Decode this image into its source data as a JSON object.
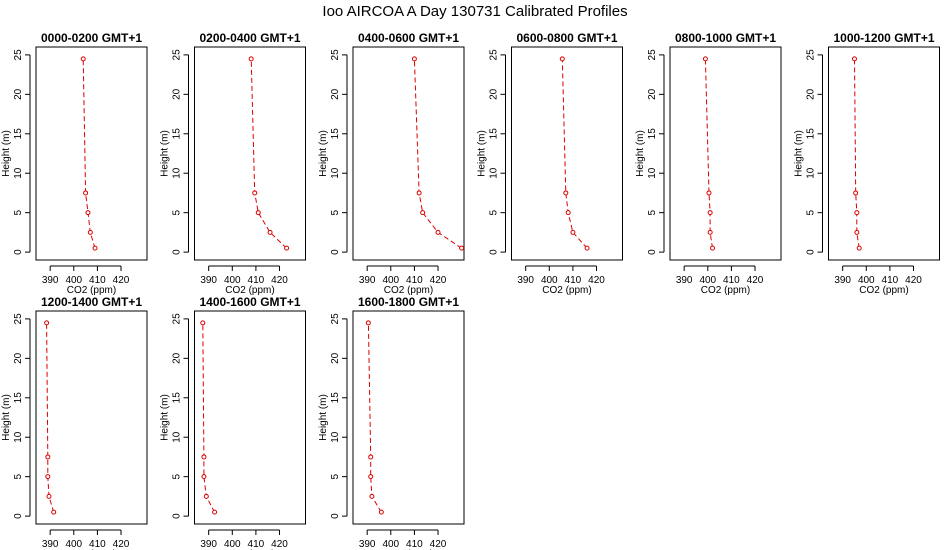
{
  "figure": {
    "title": "Ioo AIRCOA A  Day 130731  Calibrated Profiles"
  },
  "chart_data": [
    {
      "type": "line",
      "title": "0000-0200 GMT+1",
      "xlabel": "CO2 (ppm)",
      "ylabel": "Height (m)",
      "x_ticks": [
        390,
        400,
        410,
        420
      ],
      "y_ticks": [
        0,
        5,
        10,
        15,
        20,
        25
      ],
      "xlim": [
        384,
        431
      ],
      "ylim": [
        -1,
        26
      ],
      "series": [
        {
          "x": [
            409,
            407,
            406,
            405,
            404
          ],
          "y": [
            0.5,
            2.5,
            5,
            7.5,
            24.5
          ]
        }
      ]
    },
    {
      "type": "line",
      "title": "0200-0400 GMT+1",
      "xlabel": "CO2 (ppm)",
      "ylabel": "Height (m)",
      "x_ticks": [
        390,
        400,
        410,
        420
      ],
      "y_ticks": [
        0,
        5,
        10,
        15,
        20,
        25
      ],
      "xlim": [
        384,
        431
      ],
      "ylim": [
        -1,
        26
      ],
      "series": [
        {
          "x": [
            423,
            416,
            411,
            409.5,
            408
          ],
          "y": [
            0.5,
            2.5,
            5,
            7.5,
            24.5
          ]
        }
      ]
    },
    {
      "type": "line",
      "title": "0400-0600 GMT+1",
      "xlabel": "CO2 (ppm)",
      "ylabel": "Height (m)",
      "x_ticks": [
        390,
        400,
        410,
        420
      ],
      "y_ticks": [
        0,
        5,
        10,
        15,
        20,
        25
      ],
      "xlim": [
        384,
        431
      ],
      "ylim": [
        -1,
        26
      ],
      "series": [
        {
          "x": [
            430,
            420,
            413.5,
            412,
            410
          ],
          "y": [
            0.5,
            2.5,
            5,
            7.5,
            24.5
          ]
        }
      ]
    },
    {
      "type": "line",
      "title": "0600-0800 GMT+1",
      "xlabel": "CO2 (ppm)",
      "ylabel": "Height (m)",
      "x_ticks": [
        390,
        400,
        410,
        420
      ],
      "y_ticks": [
        0,
        5,
        10,
        15,
        20,
        25
      ],
      "xlim": [
        384,
        431
      ],
      "ylim": [
        -1,
        26
      ],
      "series": [
        {
          "x": [
            416,
            410,
            408,
            407,
            405.5
          ],
          "y": [
            0.5,
            2.5,
            5,
            7.5,
            24.5
          ]
        }
      ]
    },
    {
      "type": "line",
      "title": "0800-1000 GMT+1",
      "xlabel": "CO2 (ppm)",
      "ylabel": "Height (m)",
      "x_ticks": [
        390,
        400,
        410,
        420
      ],
      "y_ticks": [
        0,
        5,
        10,
        15,
        20,
        25
      ],
      "xlim": [
        384,
        431
      ],
      "ylim": [
        -1,
        26
      ],
      "series": [
        {
          "x": [
            402,
            401,
            401,
            400.5,
            399
          ],
          "y": [
            0.5,
            2.5,
            5,
            7.5,
            24.5
          ]
        }
      ]
    },
    {
      "type": "line",
      "title": "1000-1200 GMT+1",
      "xlabel": "CO2 (ppm)",
      "ylabel": "Height (m)",
      "x_ticks": [
        390,
        400,
        410,
        420
      ],
      "y_ticks": [
        0,
        5,
        10,
        15,
        20,
        25
      ],
      "xlim": [
        384,
        431
      ],
      "ylim": [
        -1,
        26
      ],
      "series": [
        {
          "x": [
            397,
            396,
            396,
            395.5,
            395
          ],
          "y": [
            0.5,
            2.5,
            5,
            7.5,
            24.5
          ]
        }
      ]
    },
    {
      "type": "line",
      "title": "1200-1400 GMT+1",
      "xlabel": "CO2 (ppm)",
      "ylabel": "Height (m)",
      "x_ticks": [
        390,
        400,
        410,
        420
      ],
      "y_ticks": [
        0,
        5,
        10,
        15,
        20,
        25
      ],
      "xlim": [
        384,
        431
      ],
      "ylim": [
        -1,
        26
      ],
      "series": [
        {
          "x": [
            391.5,
            389.5,
            389,
            389,
            388.5
          ],
          "y": [
            0.5,
            2.5,
            5,
            7.5,
            24.5
          ]
        }
      ]
    },
    {
      "type": "line",
      "title": "1400-1600 GMT+1",
      "xlabel": "CO2 (ppm)",
      "ylabel": "Height (m)",
      "x_ticks": [
        390,
        400,
        410,
        420
      ],
      "y_ticks": [
        0,
        5,
        10,
        15,
        20,
        25
      ],
      "xlim": [
        384,
        431
      ],
      "ylim": [
        -1,
        26
      ],
      "series": [
        {
          "x": [
            392.5,
            389,
            388,
            388,
            387.5
          ],
          "y": [
            0.5,
            2.5,
            5,
            7.5,
            24.5
          ]
        }
      ]
    },
    {
      "type": "line",
      "title": "1600-1800 GMT+1",
      "xlabel": "CO2 (ppm)",
      "ylabel": "Height (m)",
      "x_ticks": [
        390,
        400,
        410,
        420
      ],
      "y_ticks": [
        0,
        5,
        10,
        15,
        20,
        25
      ],
      "xlim": [
        384,
        431
      ],
      "ylim": [
        -1,
        26
      ],
      "series": [
        {
          "x": [
            396,
            392,
            391.5,
            391.5,
            390.5
          ],
          "y": [
            0.5,
            2.5,
            5,
            7.5,
            24.5
          ]
        }
      ]
    }
  ]
}
